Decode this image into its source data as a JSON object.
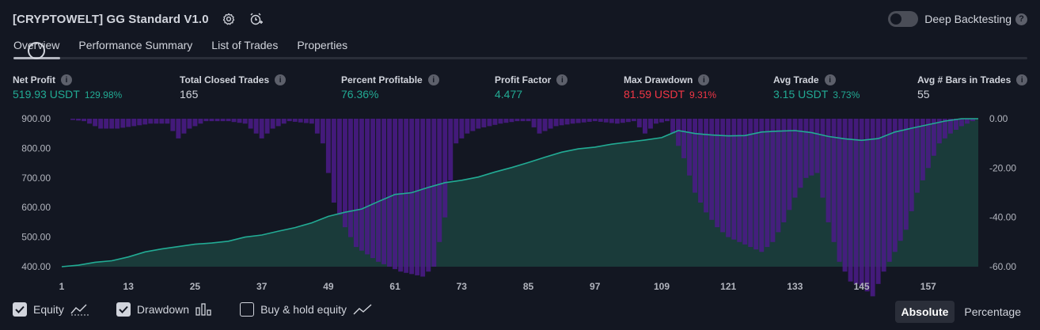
{
  "strategy": {
    "title": "[CRYPTOWELT] GG Standard V1.0",
    "settings_icon": "gear-icon",
    "alert_icon": "alarm-plus-icon"
  },
  "deep_backtesting": {
    "label": "Deep Backtesting",
    "enabled": false,
    "help": "?"
  },
  "tabs": [
    {
      "label": "Overview",
      "active": true
    },
    {
      "label": "Performance Summary",
      "active": false
    },
    {
      "label": "List of Trades",
      "active": false
    },
    {
      "label": "Properties",
      "active": false
    }
  ],
  "metrics": {
    "net_profit": {
      "label": "Net Profit",
      "value": "519.93 USDT",
      "percent": "129.98%"
    },
    "total_closed_trades": {
      "label": "Total Closed Trades",
      "value": "165"
    },
    "percent_profitable": {
      "label": "Percent Profitable",
      "value": "76.36%"
    },
    "profit_factor": {
      "label": "Profit Factor",
      "value": "4.477"
    },
    "max_drawdown": {
      "label": "Max Drawdown",
      "value": "81.59 USDT",
      "percent": "9.31%"
    },
    "avg_trade": {
      "label": "Avg Trade",
      "value": "3.15 USDT",
      "percent": "3.73%"
    },
    "avg_bars": {
      "label": "Avg # Bars in Trades",
      "value": "55"
    }
  },
  "colors": {
    "equity_line": "#22ab94",
    "equity_fill": "#1a3d3c",
    "drawdown_bar": "#4c1b8a",
    "positive": "#22ab94",
    "negative": "#f23645",
    "background": "#131722"
  },
  "chart_data": {
    "type": "area",
    "y_left": {
      "ticks": [
        "900.00",
        "800.00",
        "700.00",
        "600.00",
        "500.00",
        "400.00"
      ],
      "range": [
        400,
        900
      ]
    },
    "y_right": {
      "ticks": [
        "0.00",
        "-20.00",
        "-40.00",
        "-60.00"
      ],
      "range": [
        -60,
        0
      ]
    },
    "x_ticks": [
      "1",
      "13",
      "25",
      "37",
      "49",
      "61",
      "73",
      "85",
      "97",
      "109",
      "121",
      "133",
      "145",
      "157"
    ],
    "x_range": [
      1,
      166
    ],
    "equity": [
      [
        1,
        400
      ],
      [
        4,
        405
      ],
      [
        7,
        415
      ],
      [
        10,
        420
      ],
      [
        13,
        433
      ],
      [
        16,
        450
      ],
      [
        19,
        460
      ],
      [
        22,
        468
      ],
      [
        25,
        476
      ],
      [
        28,
        480
      ],
      [
        31,
        486
      ],
      [
        34,
        500
      ],
      [
        37,
        507
      ],
      [
        40,
        520
      ],
      [
        43,
        532
      ],
      [
        46,
        548
      ],
      [
        49,
        570
      ],
      [
        52,
        584
      ],
      [
        55,
        595
      ],
      [
        58,
        620
      ],
      [
        61,
        644
      ],
      [
        64,
        650
      ],
      [
        67,
        668
      ],
      [
        70,
        684
      ],
      [
        73,
        692
      ],
      [
        76,
        703
      ],
      [
        79,
        720
      ],
      [
        82,
        735
      ],
      [
        85,
        752
      ],
      [
        88,
        770
      ],
      [
        91,
        787
      ],
      [
        94,
        798
      ],
      [
        97,
        804
      ],
      [
        100,
        814
      ],
      [
        103,
        821
      ],
      [
        106,
        828
      ],
      [
        109,
        836
      ],
      [
        112,
        860
      ],
      [
        115,
        850
      ],
      [
        118,
        845
      ],
      [
        121,
        842
      ],
      [
        124,
        843
      ],
      [
        127,
        855
      ],
      [
        130,
        858
      ],
      [
        133,
        860
      ],
      [
        136,
        853
      ],
      [
        139,
        840
      ],
      [
        142,
        832
      ],
      [
        145,
        827
      ],
      [
        148,
        833
      ],
      [
        151,
        855
      ],
      [
        154,
        868
      ],
      [
        157,
        880
      ],
      [
        160,
        892
      ],
      [
        163,
        903
      ],
      [
        166,
        912
      ]
    ],
    "drawdown": [
      [
        1,
        0
      ],
      [
        5,
        -1
      ],
      [
        8,
        -4
      ],
      [
        11,
        -4
      ],
      [
        14,
        -3
      ],
      [
        17,
        -2
      ],
      [
        20,
        -2
      ],
      [
        22,
        -8
      ],
      [
        24,
        -4
      ],
      [
        27,
        -1
      ],
      [
        31,
        -1
      ],
      [
        34,
        -2
      ],
      [
        37,
        -8
      ],
      [
        39,
        -4
      ],
      [
        42,
        -1
      ],
      [
        46,
        -2
      ],
      [
        48,
        -10
      ],
      [
        50,
        -34
      ],
      [
        52,
        -44
      ],
      [
        54,
        -52
      ],
      [
        56,
        -55
      ],
      [
        58,
        -58
      ],
      [
        60,
        -60
      ],
      [
        62,
        -62
      ],
      [
        64,
        -63
      ],
      [
        66,
        -64
      ],
      [
        68,
        -60
      ],
      [
        70,
        -40
      ],
      [
        71,
        -25
      ],
      [
        72,
        -10
      ],
      [
        74,
        -6
      ],
      [
        76,
        -4
      ],
      [
        78,
        -3
      ],
      [
        80,
        -2
      ],
      [
        83,
        -1
      ],
      [
        85,
        -1
      ],
      [
        87,
        -6
      ],
      [
        90,
        -3
      ],
      [
        93,
        -2
      ],
      [
        97,
        -1
      ],
      [
        101,
        -2
      ],
      [
        104,
        -1
      ],
      [
        106,
        -6
      ],
      [
        108,
        -2
      ],
      [
        110,
        -1
      ],
      [
        113,
        -16
      ],
      [
        115,
        -30
      ],
      [
        117,
        -38
      ],
      [
        119,
        -44
      ],
      [
        121,
        -48
      ],
      [
        123,
        -50
      ],
      [
        125,
        -52
      ],
      [
        127,
        -54
      ],
      [
        129,
        -50
      ],
      [
        131,
        -42
      ],
      [
        133,
        -32
      ],
      [
        135,
        -24
      ],
      [
        137,
        -22
      ],
      [
        139,
        -42
      ],
      [
        141,
        -58
      ],
      [
        143,
        -66
      ],
      [
        145,
        -68
      ],
      [
        147,
        -72
      ],
      [
        149,
        -62
      ],
      [
        151,
        -54
      ],
      [
        153,
        -45
      ],
      [
        155,
        -30
      ],
      [
        157,
        -20
      ],
      [
        159,
        -10
      ],
      [
        161,
        -6
      ],
      [
        163,
        -3
      ],
      [
        166,
        0
      ]
    ]
  },
  "legend": [
    {
      "label": "Equity",
      "checked": true,
      "icon": "equity-line-icon"
    },
    {
      "label": "Drawdown",
      "checked": true,
      "icon": "drawdown-bars-icon"
    },
    {
      "label": "Buy & hold equity",
      "checked": false,
      "icon": "buyhold-line-icon"
    }
  ],
  "modes": {
    "absolute": "Absolute",
    "percentage": "Percentage",
    "active": "absolute"
  }
}
